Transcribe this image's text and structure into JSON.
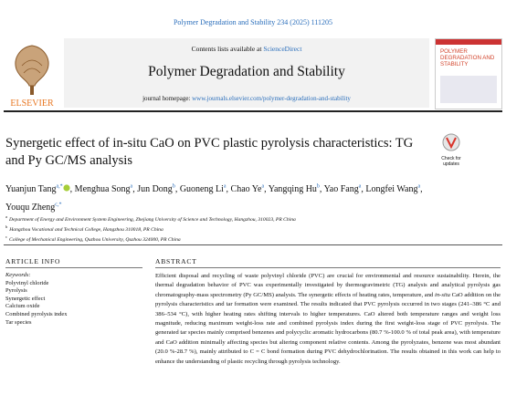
{
  "header": {
    "citation": "Polymer Degradation and Stability 234 (2025) 111205"
  },
  "banner": {
    "contents": "Contents lists available at ",
    "contents_link": "ScienceDirect",
    "journal": "Polymer Degradation and Stability",
    "homepage_label": "journal homepage: ",
    "homepage_url": "www.journals.elsevier.com/polymer-degradation-and-stability",
    "publisher": "ELSEVIER",
    "cover_title": "POLYMER DEGRADATION AND STABILITY",
    "badge": "Check for updates"
  },
  "article": {
    "title": "Synergetic effect of in-situ CaO on PVC plastic pyrolysis characteristics: TG and Py GC/MS analysis",
    "authors": [
      {
        "name": "Yuanjun Tang",
        "affil": "a,*",
        "sep": ","
      },
      {
        "name": "Menghua Song",
        "affil": "a",
        "sep": ","
      },
      {
        "name": "Jun Dong",
        "affil": "b",
        "sep": ","
      },
      {
        "name": "Guoneng Li",
        "affil": "a",
        "sep": ","
      },
      {
        "name": "Chao Ye",
        "affil": "a",
        "sep": ","
      },
      {
        "name": "Yangqing Hu",
        "affil": "b",
        "sep": ","
      },
      {
        "name": "Yao Fang",
        "affil": "a",
        "sep": ","
      },
      {
        "name": "Longfei Wang",
        "affil": "a",
        "sep": ","
      },
      {
        "name": "Youqu Zheng",
        "affil": "c,*"
      }
    ],
    "affiliations": [
      {
        "label": "a",
        "text": "Department of Energy and Environment System Engineering, Zhejiang University of Science and Technology, Hangzhou, 310023, PR China"
      },
      {
        "label": "b",
        "text": "Hangzhou Vocational and Technical College, Hangzhou 310018, PR China"
      },
      {
        "label": "c",
        "text": "College of Mechanical Engineering, Quzhou University, Quzhou 324000, PR China"
      }
    ]
  },
  "article_info": {
    "heading": "ARTICLE INFO",
    "keywords_label": "Keywords:",
    "keywords": [
      "Polyvinyl chloride",
      "Pyrolysis",
      "Synergetic effect",
      "Calcium oxide",
      "Combined pyrolysis index",
      "Tar species"
    ]
  },
  "abstract": {
    "heading": "ABSTRACT",
    "parts": [
      "Efficient disposal and recycling of waste polyvinyl chloride (PVC) are crucial for environmental and resource sustainability. Herein, the thermal degradation behavior of PVC was experimentally investigated by thermogravimetric (TG) analysis and analytical pyrolysis gas chromatography-mass spectrometry (Py GC/MS) analysis. The synergetic effects of heating rates, temperature, and ",
      "in-situ",
      " CaO addition on the pyrolysis characteristics and tar formation were examined. The results indicated that PVC pyrolysis occurred in two stages (241–386 °C and 386–534 °C), with higher heating rates shifting intervals to higher temperatures. CaO altered both temperature ranges and weight loss magnitude, reducing maximum weight-loss rate and combined pyrolysis index during the first weight-loss stage of PVC pyrolysis. The generated tar species mainly comprised benzenes and polycyclic aromatic hydrocarbons (80.7 %-100.0 % of total peak area), with temperature and CaO addition minimally affecting species but altering component relative contents. Among the pyrolyzates, benzene was most abundant (20.0 %-28.7 %), mainly attributed to C = C bond formation during PVC dehydrochlorination. The results obtained in this work can help to enhance the understanding of plastic recycling through pyrolysis technology."
    ]
  }
}
